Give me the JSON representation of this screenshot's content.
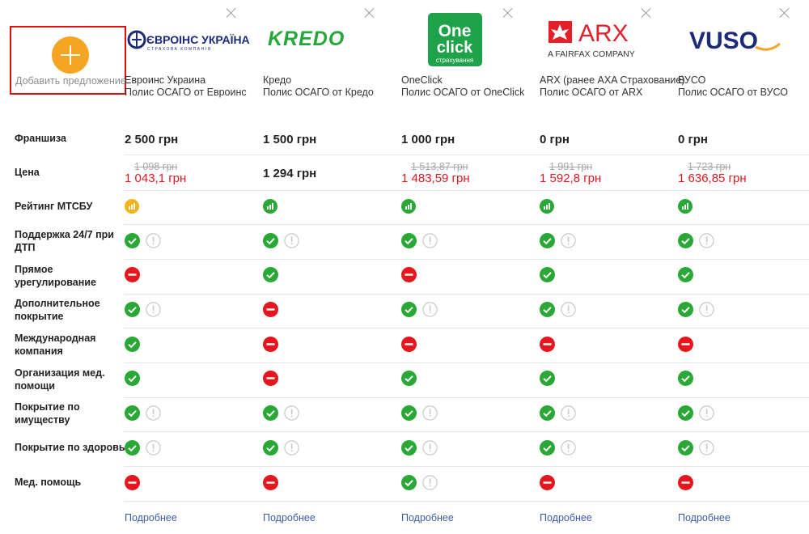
{
  "add_offer": {
    "label": "Добавить предложение"
  },
  "row_labels": {
    "franchise": "Франшиза",
    "price": "Цена",
    "rating": "Рейтинг МТСБУ",
    "support": "Поддержка 24/7 при ДТП",
    "direct": "Прямое урегулирование",
    "extra": "Дополнительное покрытие",
    "intl": "Международная компания",
    "med_org": "Организация мед. помощи",
    "property": "Покрытие по имуществу",
    "health": "Покрытие по здоровью",
    "med_help": "Мед. помощь"
  },
  "more_label": "Подробнее",
  "colors": {
    "check": "#2aa836",
    "minus": "#e4161e",
    "accent": "#f5a522",
    "link": "#3b5ba4"
  },
  "companies": [
    {
      "logo_text": "ЄВРОІНС УКРАЇНА",
      "logo_sub": "СТРАХОВА КОМПАНІЯ",
      "name": "Евроинс Украина",
      "policy": "Полис ОСАГО от Евроинс",
      "franchise": "2 500 грн",
      "old_price": "1 098 грн",
      "price": "1 043,1 грн",
      "rating": "yellow",
      "features": {
        "support": [
          "check",
          "info"
        ],
        "direct": [
          "minus"
        ],
        "extra": [
          "check",
          "info"
        ],
        "intl": [
          "check"
        ],
        "med_org": [
          "check"
        ],
        "property": [
          "check",
          "info"
        ],
        "health": [
          "check",
          "info"
        ],
        "med_help": [
          "minus"
        ]
      }
    },
    {
      "logo_text": "KREDO",
      "name": "Кредо",
      "policy": "Полис ОСАГО от Кредо",
      "franchise": "1 500 грн",
      "old_price": "",
      "price": "1 294 грн",
      "rating": "green",
      "features": {
        "support": [
          "check",
          "info"
        ],
        "direct": [
          "check"
        ],
        "extra": [
          "minus"
        ],
        "intl": [
          "minus"
        ],
        "med_org": [
          "minus"
        ],
        "property": [
          "check",
          "info"
        ],
        "health": [
          "check",
          "info"
        ],
        "med_help": [
          "minus"
        ]
      }
    },
    {
      "logo_text_1": "One",
      "logo_text_2": "click",
      "logo_sub": "страхування",
      "name": "OneClick",
      "policy": "Полис ОСАГО от OneClick",
      "franchise": "1 000 грн",
      "old_price": "1 513,87 грн",
      "price": "1 483,59 грн",
      "rating": "green",
      "features": {
        "support": [
          "check",
          "info"
        ],
        "direct": [
          "minus"
        ],
        "extra": [
          "check",
          "info"
        ],
        "intl": [
          "minus"
        ],
        "med_org": [
          "check"
        ],
        "property": [
          "check",
          "info"
        ],
        "health": [
          "check",
          "info"
        ],
        "med_help": [
          "check",
          "info"
        ]
      }
    },
    {
      "logo_text": "ARX",
      "logo_sub": "A FAIRFAX COMPANY",
      "name": "ARX (ранее AXA Страхование)",
      "policy": "Полис ОСАГО от ARX",
      "franchise": "0 грн",
      "old_price": "1 991 грн",
      "price": "1 592,8 грн",
      "rating": "green",
      "features": {
        "support": [
          "check",
          "info"
        ],
        "direct": [
          "check"
        ],
        "extra": [
          "check",
          "info"
        ],
        "intl": [
          "minus"
        ],
        "med_org": [
          "check"
        ],
        "property": [
          "check",
          "info"
        ],
        "health": [
          "check",
          "info"
        ],
        "med_help": [
          "minus"
        ]
      }
    },
    {
      "logo_text": "VUSO",
      "name": "ВУСО",
      "policy": "Полис ОСАГО от ВУСО",
      "franchise": "0 грн",
      "old_price": "1 723 грн",
      "price": "1 636,85 грн",
      "rating": "green",
      "features": {
        "support": [
          "check",
          "info"
        ],
        "direct": [
          "check"
        ],
        "extra": [
          "check",
          "info"
        ],
        "intl": [
          "minus"
        ],
        "med_org": [
          "check"
        ],
        "property": [
          "check",
          "info"
        ],
        "health": [
          "check",
          "info"
        ],
        "med_help": [
          "minus"
        ]
      }
    }
  ]
}
